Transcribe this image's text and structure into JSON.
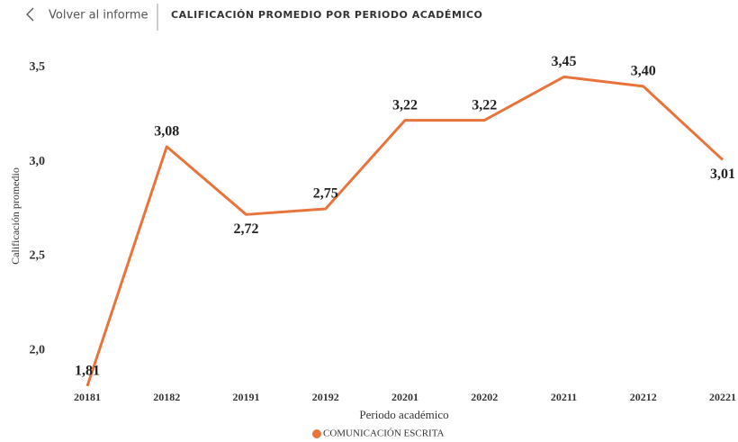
{
  "header": {
    "back_label": "Volver al informe",
    "title": "CALIFICACIÓN PROMEDIO POR PERIODO ACADÉMICO"
  },
  "chart_data": {
    "type": "line",
    "x_label": "Periodo académico",
    "y_label": "Calificación promedio",
    "categories": [
      "20181",
      "20182",
      "20191",
      "20192",
      "20201",
      "20202",
      "20211",
      "20212",
      "20221"
    ],
    "series": [
      {
        "name": "COMUNICACIÓN ESCRITA",
        "color": "#e8743b",
        "values": [
          1.81,
          3.08,
          2.72,
          2.75,
          3.22,
          3.22,
          3.45,
          3.4,
          3.01
        ],
        "value_labels": [
          "1,81",
          "3,08",
          "2,72",
          "2,75",
          "3,22",
          "3,22",
          "3,45",
          "3,40",
          "3,01"
        ]
      }
    ],
    "ylim": [
      1.8,
      3.6
    ],
    "yticks": [
      {
        "value": 2.0,
        "label": "2,0"
      },
      {
        "value": 2.5,
        "label": "2,5"
      },
      {
        "value": 3.0,
        "label": "3,0"
      },
      {
        "value": 3.5,
        "label": "3,5"
      }
    ],
    "grid": false,
    "legend": "bottom"
  }
}
